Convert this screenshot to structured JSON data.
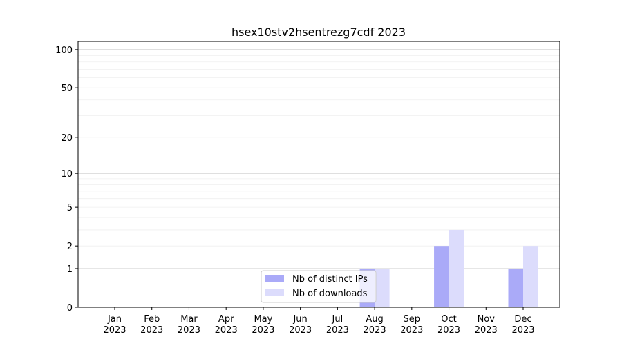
{
  "chart_data": {
    "type": "bar",
    "title": "hsex10stv2hsentrezg7cdf 2023",
    "xlabel": "",
    "ylabel": "",
    "y_scale": "log(1+y)",
    "ylim": [
      0,
      116
    ],
    "yticks": [
      0,
      1,
      2,
      5,
      10,
      20,
      50,
      100
    ],
    "grid": true,
    "legend_position": "lower-center",
    "categories": [
      "Jan\n2023",
      "Feb\n2023",
      "Mar\n2023",
      "Apr\n2023",
      "May\n2023",
      "Jun\n2023",
      "Jul\n2023",
      "Aug\n2023",
      "Sep\n2023",
      "Oct\n2023",
      "Nov\n2023",
      "Dec\n2023"
    ],
    "series": [
      {
        "name": "Nb of distinct IPs",
        "color": "#aaaaf8",
        "values": [
          0,
          0,
          0,
          0,
          0,
          0,
          0,
          1,
          0,
          2,
          0,
          1
        ]
      },
      {
        "name": "Nb of downloads",
        "color": "#dcdcfc",
        "values": [
          0,
          0,
          0,
          0,
          0,
          0,
          0,
          1,
          0,
          3,
          0,
          2
        ]
      }
    ]
  }
}
